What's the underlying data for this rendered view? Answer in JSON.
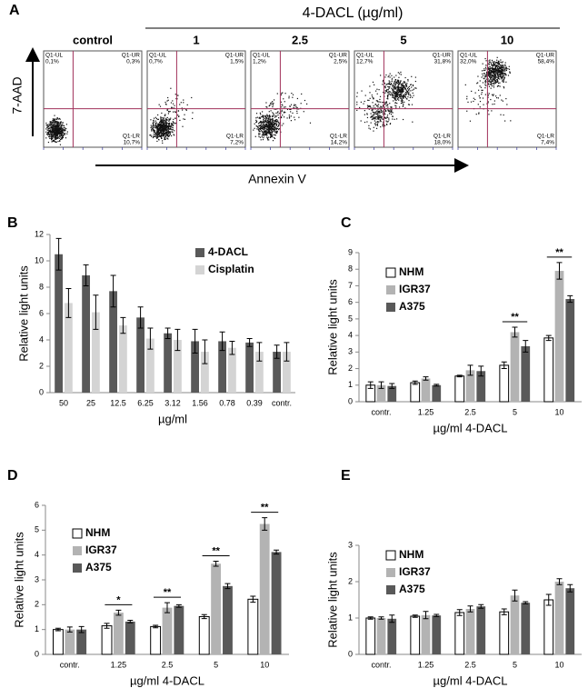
{
  "flow_panel": {
    "panel": "A",
    "title": "4-DACL (µg/ml)",
    "y_axis": "7-AAD",
    "x_axis": "Annexin V",
    "plots": [
      {
        "label": "control",
        "ul_name": "Q1-UL",
        "ul": "0,1%",
        "ur_name": "Q1-UR",
        "ur": "0,3%",
        "lr_name": "Q1-LR",
        "lr": "10,7%"
      },
      {
        "label": "1",
        "ul_name": "Q1-UL",
        "ul": "0,7%",
        "ur_name": "Q1-UR",
        "ur": "1,5%",
        "lr_name": "Q1-LR",
        "lr": "7,2%"
      },
      {
        "label": "2.5",
        "ul_name": "Q1-UL",
        "ul": "1,2%",
        "ur_name": "Q1-UR",
        "ur": "2,5%",
        "lr_name": "Q1-LR",
        "lr": "14,2%"
      },
      {
        "label": "5",
        "ul_name": "Q1-UL",
        "ul": "12,7%",
        "ur_name": "Q1-UR",
        "ur": "31,8%",
        "lr_name": "Q1-LR",
        "lr": "18,0%"
      },
      {
        "label": "10",
        "ul_name": "Q1-UL",
        "ul": "32,0%",
        "ur_name": "Q1-UR",
        "ur": "58,4%",
        "lr_name": "Q1-LR",
        "lr": "7,4%"
      }
    ]
  },
  "chart_data": [
    {
      "type": "bar",
      "panel": "B",
      "y_label": "Relative light units",
      "x_label": "µg/ml",
      "categories": [
        "50",
        "25",
        "12.5",
        "6.25",
        "3.12",
        "1.56",
        "0.78",
        "0.39",
        "contr."
      ],
      "ylim": [
        0,
        12
      ],
      "yticks": [
        0,
        2,
        4,
        6,
        8,
        10,
        12
      ],
      "legend": "top-right",
      "series": [
        {
          "name": "4-DACL",
          "color": "#595959",
          "values": [
            10.5,
            8.9,
            7.7,
            5.7,
            4.5,
            3.9,
            3.9,
            3.8,
            3.1
          ],
          "errors": [
            1.2,
            0.8,
            1.2,
            0.8,
            0.4,
            0.9,
            0.7,
            0.3,
            0.5
          ]
        },
        {
          "name": "Cisplatin",
          "color": "#d4d4d4",
          "values": [
            6.8,
            6.1,
            5.1,
            4.1,
            4.0,
            3.1,
            3.4,
            3.1,
            3.1
          ],
          "errors": [
            1.1,
            1.3,
            0.6,
            0.8,
            0.8,
            0.9,
            0.5,
            0.7,
            0.7
          ]
        }
      ]
    },
    {
      "type": "bar",
      "panel": "C",
      "y_label": "Relative light units",
      "x_label": "µg/ml 4-DACL",
      "categories": [
        "contr.",
        "1.25",
        "2.5",
        "5",
        "10"
      ],
      "ylim": [
        0,
        9
      ],
      "yticks": [
        0,
        1,
        2,
        3,
        4,
        5,
        6,
        7,
        8,
        9
      ],
      "legend": "top-left",
      "significance": [
        null,
        null,
        null,
        "**",
        "**"
      ],
      "series": [
        {
          "name": "NHM",
          "color": "#ffffff",
          "values": [
            1.0,
            1.15,
            1.55,
            2.2,
            3.85
          ],
          "errors": [
            0.2,
            0.1,
            0.05,
            0.2,
            0.15
          ]
        },
        {
          "name": "IGR37",
          "color": "#b3b3b3",
          "values": [
            1.0,
            1.4,
            1.9,
            4.2,
            7.9
          ],
          "errors": [
            0.2,
            0.1,
            0.3,
            0.3,
            0.5
          ]
        },
        {
          "name": "A375",
          "color": "#595959",
          "values": [
            0.95,
            1.0,
            1.85,
            3.35,
            6.2
          ],
          "errors": [
            0.15,
            0.05,
            0.3,
            0.35,
            0.2
          ]
        }
      ]
    },
    {
      "type": "bar",
      "panel": "D",
      "y_label": "Relative light units",
      "x_label": "µg/ml 4-DACL",
      "categories": [
        "contr.",
        "1.25",
        "2.5",
        "5",
        "10"
      ],
      "ylim": [
        0,
        6
      ],
      "yticks": [
        0,
        1,
        2,
        3,
        4,
        5,
        6
      ],
      "legend": "top-left",
      "significance": [
        null,
        "*",
        "**",
        "**",
        "**"
      ],
      "series": [
        {
          "name": "NHM",
          "color": "#ffffff",
          "values": [
            1.0,
            1.15,
            1.12,
            1.52,
            2.22
          ],
          "errors": [
            0.05,
            0.1,
            0.05,
            0.08,
            0.12
          ]
        },
        {
          "name": "IGR37",
          "color": "#b3b3b3",
          "values": [
            1.0,
            1.68,
            1.88,
            3.65,
            5.25
          ],
          "errors": [
            0.1,
            0.1,
            0.2,
            0.1,
            0.25
          ]
        },
        {
          "name": "A375",
          "color": "#595959",
          "values": [
            1.0,
            1.32,
            1.95,
            2.75,
            4.12
          ],
          "errors": [
            0.12,
            0.05,
            0.05,
            0.1,
            0.08
          ]
        }
      ]
    },
    {
      "type": "bar",
      "panel": "E",
      "y_label": "Relative light units",
      "x_label": "µg/ml 4-DACL",
      "categories": [
        "contr.",
        "1.25",
        "2.5",
        "5",
        "10"
      ],
      "ylim": [
        0,
        3
      ],
      "yticks": [
        0,
        1,
        2,
        3
      ],
      "legend": "top-left",
      "series": [
        {
          "name": "NHM",
          "color": "#ffffff",
          "values": [
            1.0,
            1.05,
            1.15,
            1.17,
            1.5
          ],
          "errors": [
            0.03,
            0.03,
            0.08,
            0.08,
            0.15
          ]
        },
        {
          "name": "IGR37",
          "color": "#b3b3b3",
          "values": [
            1.0,
            1.08,
            1.25,
            1.62,
            2.0
          ],
          "errors": [
            0.03,
            0.1,
            0.08,
            0.15,
            0.08
          ]
        },
        {
          "name": "A375",
          "color": "#595959",
          "values": [
            0.98,
            1.07,
            1.32,
            1.42,
            1.82
          ],
          "errors": [
            0.1,
            0.03,
            0.05,
            0.03,
            0.1
          ]
        }
      ]
    }
  ]
}
